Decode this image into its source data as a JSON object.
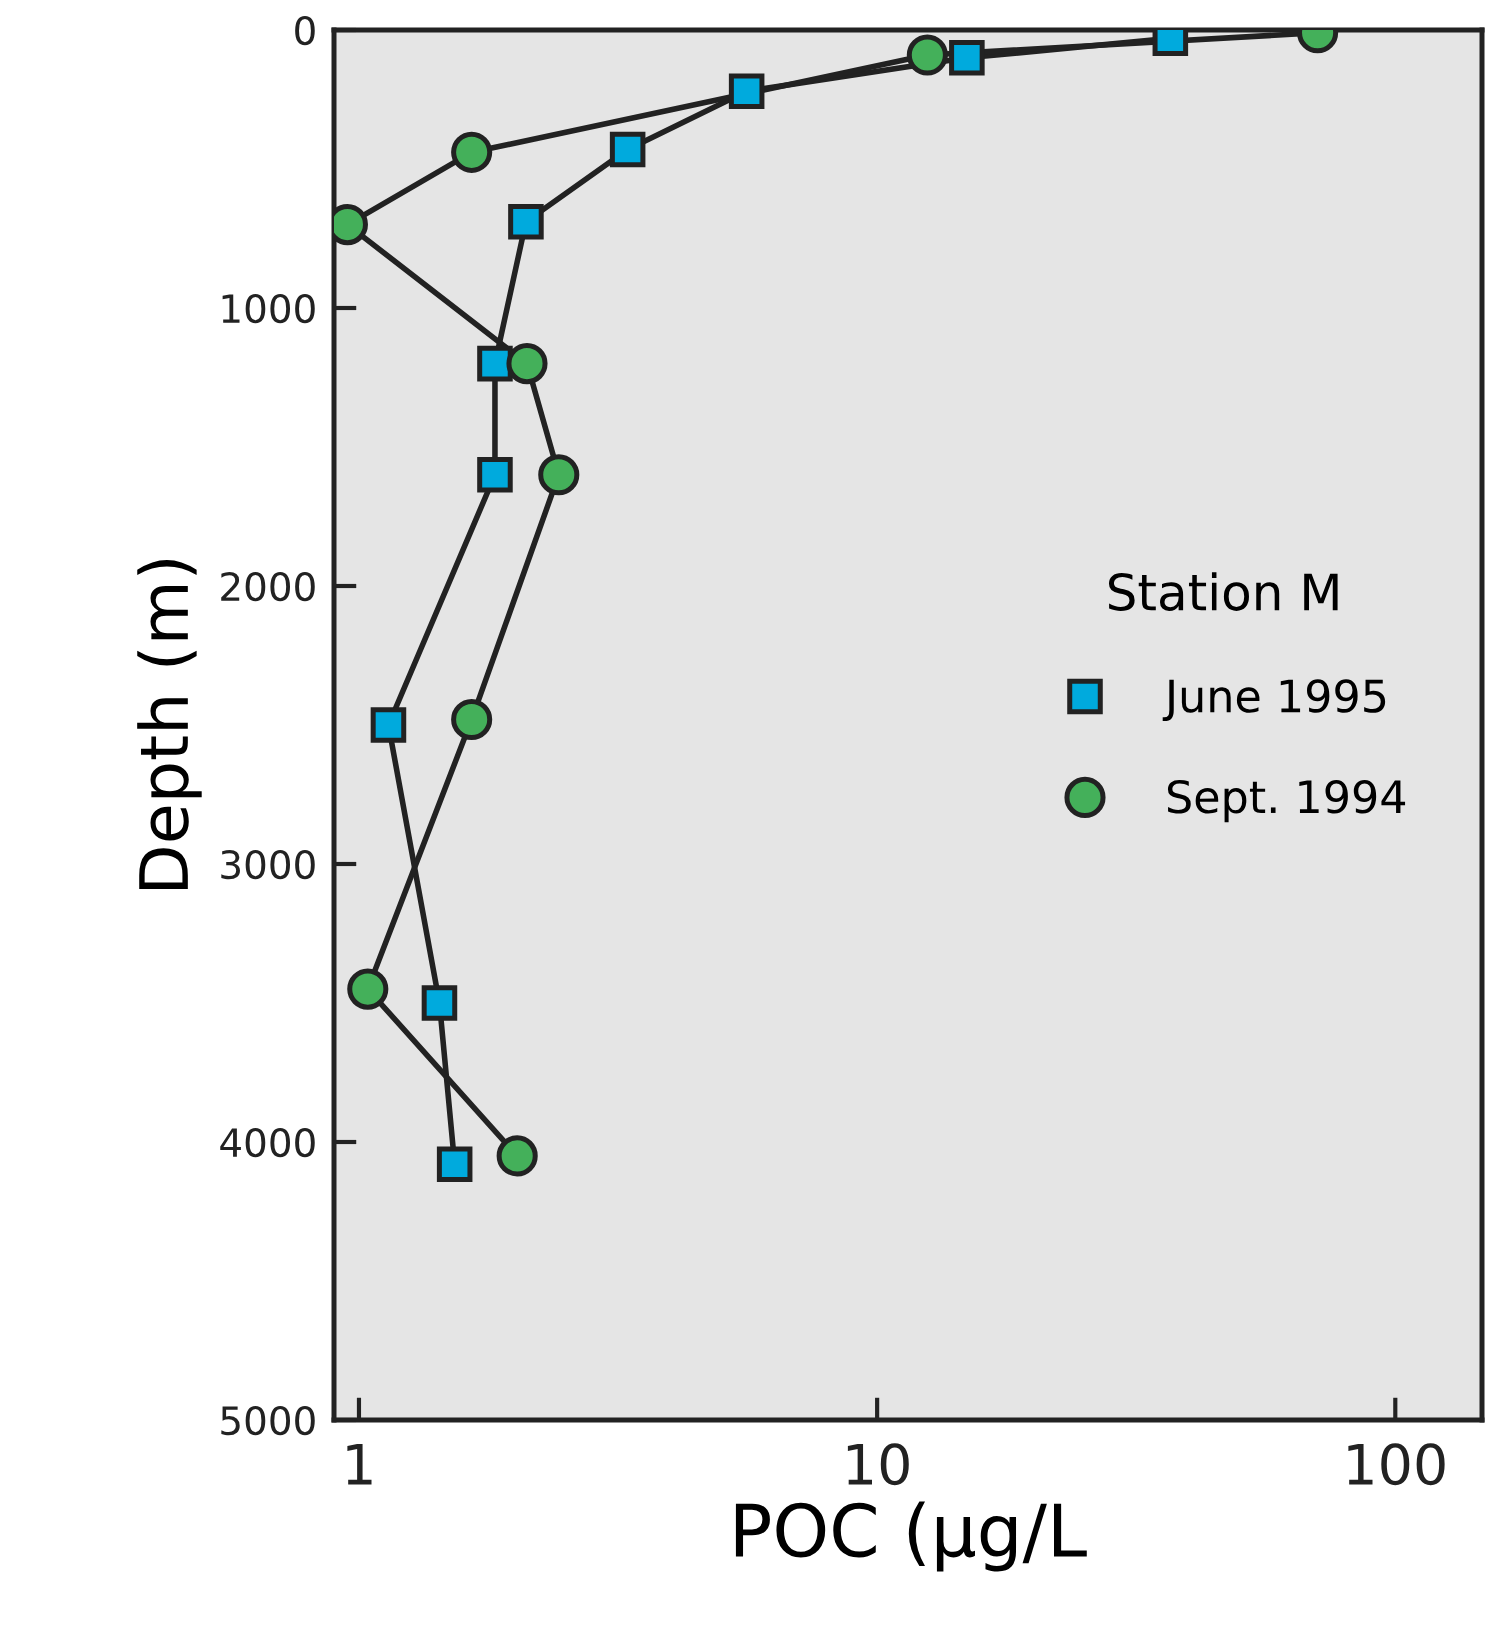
{
  "chart_data": {
    "type": "line",
    "xlabel": "POC (µg/L",
    "ylabel": "Depth (m)",
    "legend_title": "Station M",
    "legend": "right",
    "log": "x",
    "grid": false,
    "xlim": [
      0.895,
      147
    ],
    "xticks": [
      1,
      10,
      100
    ],
    "ylim": [
      5000,
      0
    ],
    "yticks": [
      0,
      1000,
      2000,
      3000,
      4000,
      5000
    ],
    "series": [
      {
        "name": "June 1995",
        "color": "#00aadd",
        "marker": "square",
        "x": [
          36.8,
          14.9,
          5.6,
          3.3,
          2.1,
          1.83,
          1.83,
          1.14,
          1.43,
          1.53
        ],
        "values": [
          30,
          100,
          220,
          430,
          690,
          1200,
          1600,
          2500,
          3500,
          4080
        ]
      },
      {
        "name": "Sept. 1994",
        "color": "#44b05a",
        "marker": "circle",
        "x": [
          70.8,
          12.5,
          1.65,
          0.95,
          2.11,
          2.43,
          1.65,
          1.04,
          2.02
        ],
        "values": [
          10,
          90,
          440,
          700,
          1200,
          1600,
          2480,
          3450,
          4050
        ]
      }
    ]
  }
}
